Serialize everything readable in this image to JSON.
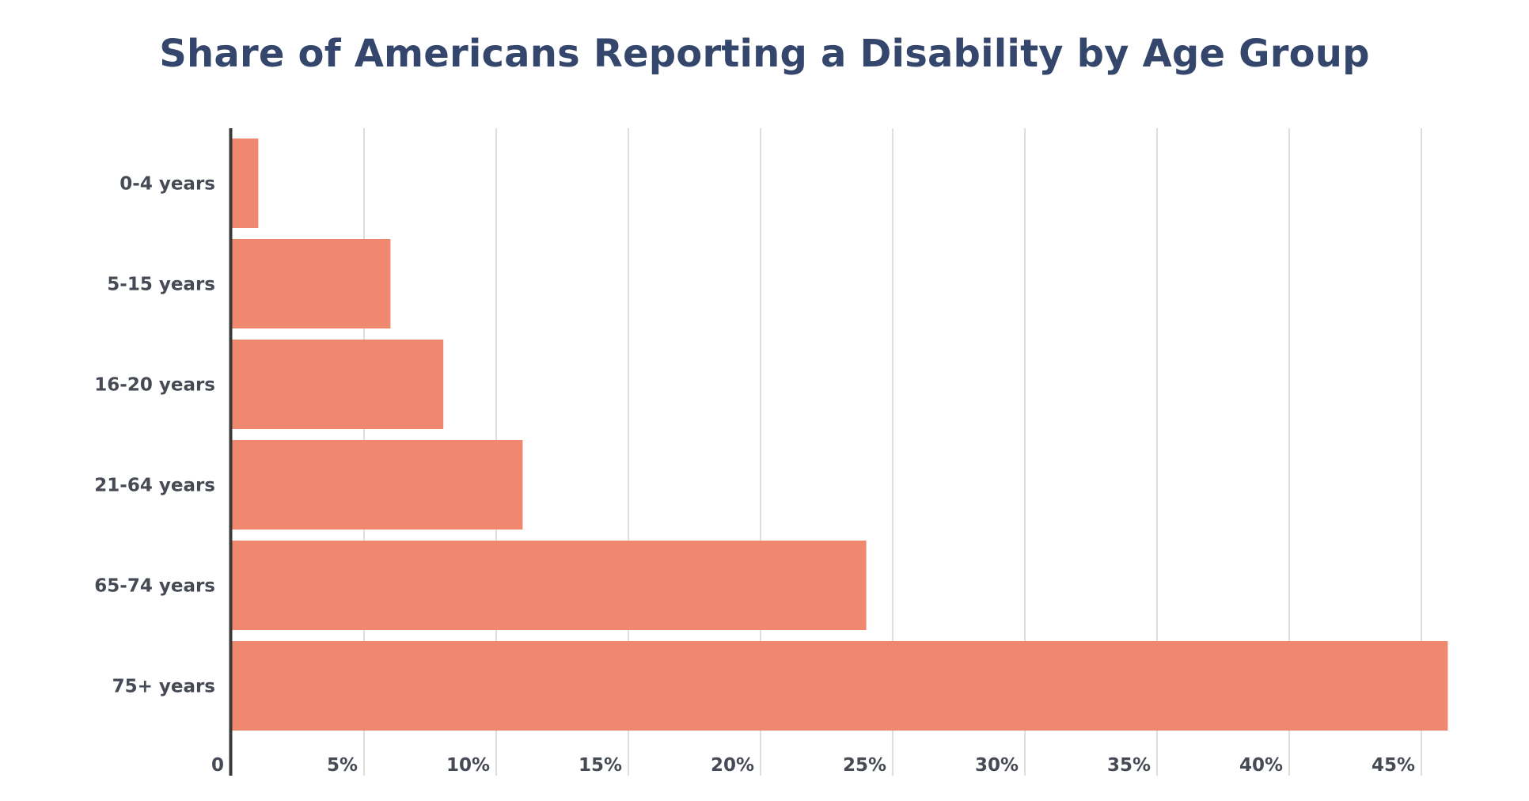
{
  "chart_data": {
    "type": "bar",
    "orientation": "horizontal",
    "title": "Share of Americans Reporting a Disability by Age Group",
    "xlabel": "",
    "ylabel": "",
    "categories": [
      "0-4 years",
      "5-15 years",
      "16-20 years",
      "21-64 years",
      "65-74 years",
      "75+ years"
    ],
    "values": [
      1.0,
      6.0,
      8.0,
      11.0,
      24.0,
      46.0
    ],
    "xticks": [
      "0",
      "5%",
      "10%",
      "15%",
      "20%",
      "25%",
      "30%",
      "35%",
      "40%",
      "45%"
    ],
    "xlim": [
      0,
      46.5
    ],
    "grid": "vertical",
    "colors": {
      "bar": "#f0876f",
      "title": "#34466b",
      "axis": "#3a3a3a",
      "grid": "#d3d3d3",
      "labels": "#454a55"
    }
  }
}
